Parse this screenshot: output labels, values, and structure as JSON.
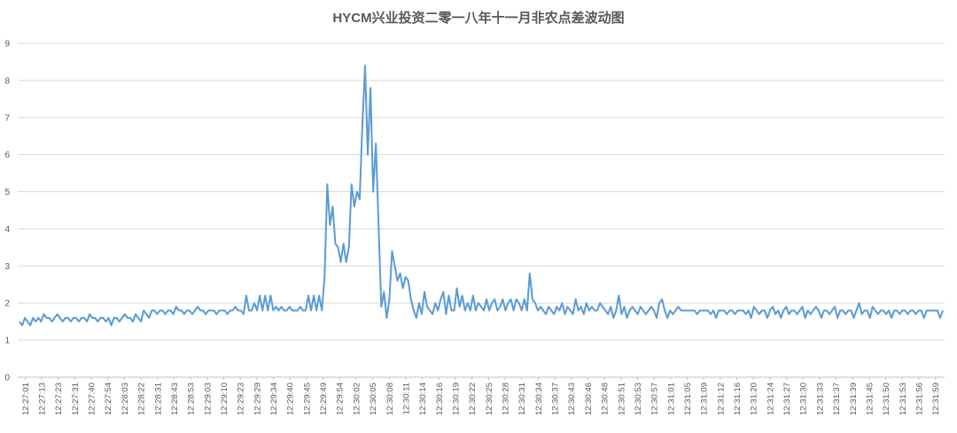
{
  "chart_data": {
    "type": "line",
    "title": "HYCM兴业投资二零一八年十一月非农点差波动图",
    "xlabel": "",
    "ylabel": "",
    "ylim": [
      0,
      9
    ],
    "yticks": [
      0,
      1,
      2,
      3,
      4,
      5,
      6,
      7,
      8,
      9
    ],
    "grid": true,
    "legend": "none",
    "colors": {
      "series": "#5b9bd5",
      "grid": "#d9d9d9",
      "text": "#595959"
    },
    "x_tick_labels": [
      "12:27:01",
      "12:27:13",
      "12:27:23",
      "12:27:31",
      "12:27:40",
      "12:27:54",
      "12:28:03",
      "12:28:22",
      "12:28:31",
      "12:28:43",
      "12:28:53",
      "12:29:03",
      "12:29:10",
      "12:29:23",
      "12:29:29",
      "12:29:34",
      "12:29:40",
      "12:29:45",
      "12:29:49",
      "12:29:54",
      "12:30:02",
      "12:30:05",
      "12:30:08",
      "12:30:11",
      "12:30:14",
      "12:30:16",
      "12:30:19",
      "12:30:22",
      "12:30:25",
      "12:30:28",
      "12:30:31",
      "12:30:34",
      "12:30:37",
      "12:30:43",
      "12:30:46",
      "12:30:48",
      "12:30:51",
      "12:30:53",
      "12:30:57",
      "12:31:01",
      "12:31:05",
      "12:31:09",
      "12:31:12",
      "12:31:16",
      "12:31:20",
      "12:31:24",
      "12:31:27",
      "12:31:30",
      "12:31:33",
      "12:31:37",
      "12:31:39",
      "12:31:45",
      "12:31:50",
      "12:31:53",
      "12:31:56",
      "12:31:59"
    ],
    "series": [
      {
        "values": [
          1.5,
          1.4,
          1.6,
          1.5,
          1.4,
          1.6,
          1.5,
          1.6,
          1.5,
          1.7,
          1.6,
          1.6,
          1.5,
          1.6,
          1.7,
          1.6,
          1.5,
          1.6,
          1.6,
          1.5,
          1.6,
          1.6,
          1.5,
          1.6,
          1.6,
          1.5,
          1.7,
          1.6,
          1.6,
          1.5,
          1.6,
          1.6,
          1.5,
          1.6,
          1.4,
          1.6,
          1.6,
          1.5,
          1.6,
          1.7,
          1.6,
          1.6,
          1.5,
          1.7,
          1.6,
          1.5,
          1.8,
          1.7,
          1.6,
          1.8,
          1.8,
          1.7,
          1.8,
          1.8,
          1.7,
          1.8,
          1.8,
          1.7,
          1.9,
          1.8,
          1.8,
          1.7,
          1.8,
          1.8,
          1.7,
          1.8,
          1.9,
          1.8,
          1.8,
          1.7,
          1.8,
          1.8,
          1.8,
          1.7,
          1.8,
          1.8,
          1.8,
          1.7,
          1.8,
          1.8,
          1.9,
          1.8,
          1.8,
          1.7,
          2.2,
          1.8,
          1.8,
          2.0,
          1.8,
          2.2,
          1.8,
          2.2,
          1.8,
          2.2,
          1.8,
          1.9,
          1.8,
          1.9,
          1.8,
          1.8,
          1.9,
          1.8,
          1.8,
          1.8,
          1.9,
          1.8,
          1.8,
          2.2,
          1.8,
          2.2,
          1.8,
          2.2,
          1.8,
          2.7,
          5.2,
          4.1,
          4.6,
          3.6,
          3.5,
          3.1,
          3.6,
          3.1,
          3.5,
          5.2,
          4.6,
          5.0,
          4.8,
          6.8,
          8.4,
          6.0,
          7.8,
          5.0,
          6.3,
          4.1,
          1.9,
          2.3,
          1.6,
          2.1,
          3.4,
          3.0,
          2.6,
          2.8,
          2.4,
          2.7,
          2.6,
          2.1,
          1.8,
          1.6,
          2.0,
          1.7,
          2.3,
          1.9,
          1.8,
          1.7,
          2.0,
          1.8,
          2.1,
          2.3,
          1.7,
          2.2,
          1.8,
          1.8,
          2.4,
          1.9,
          2.2,
          1.8,
          2.0,
          1.8,
          2.2,
          1.8,
          2.0,
          1.9,
          1.8,
          2.1,
          1.8,
          2.0,
          2.1,
          1.8,
          1.9,
          2.1,
          1.8,
          2.0,
          2.1,
          1.8,
          2.1,
          2.0,
          1.8,
          2.1,
          1.8,
          2.8,
          2.1,
          2.0,
          1.8,
          1.9,
          1.8,
          1.7,
          1.9,
          1.8,
          1.7,
          1.9,
          1.8,
          2.0,
          1.7,
          1.9,
          1.8,
          1.7,
          2.1,
          1.8,
          1.9,
          1.7,
          2.0,
          1.8,
          1.9,
          1.8,
          1.8,
          2.0,
          1.9,
          1.8,
          1.7,
          1.9,
          1.6,
          1.8,
          2.2,
          1.7,
          1.9,
          1.6,
          1.8,
          1.9,
          1.8,
          1.7,
          1.9,
          1.8,
          1.7,
          1.8,
          1.9,
          1.8,
          1.6,
          2.0,
          2.1,
          1.8,
          1.6,
          1.8,
          1.7,
          1.8,
          1.9,
          1.8,
          1.8,
          1.8,
          1.8,
          1.8,
          1.8,
          1.7,
          1.8,
          1.8,
          1.8,
          1.8,
          1.7,
          1.8,
          1.6,
          1.8,
          1.8,
          1.8,
          1.7,
          1.8,
          1.8,
          1.7,
          1.8,
          1.8,
          1.8,
          1.7,
          1.8,
          1.6,
          1.9,
          1.8,
          1.7,
          1.8,
          1.8,
          1.6,
          1.8,
          1.9,
          1.7,
          1.8,
          1.6,
          1.8,
          1.9,
          1.7,
          1.8,
          1.8,
          1.7,
          1.8,
          1.9,
          1.6,
          1.8,
          1.7,
          1.8,
          1.9,
          1.8,
          1.6,
          1.8,
          1.8,
          1.7,
          1.8,
          1.9,
          1.6,
          1.8,
          1.8,
          1.7,
          1.8,
          1.8,
          1.6,
          1.8,
          2.0,
          1.7,
          1.8,
          1.8,
          1.6,
          1.9,
          1.8,
          1.7,
          1.8,
          1.8,
          1.7,
          1.8,
          1.6,
          1.8,
          1.8,
          1.7,
          1.8,
          1.8,
          1.7,
          1.8,
          1.8,
          1.7,
          1.8,
          1.8,
          1.6,
          1.8,
          1.8,
          1.8,
          1.8,
          1.8,
          1.6,
          1.8
        ]
      }
    ]
  }
}
